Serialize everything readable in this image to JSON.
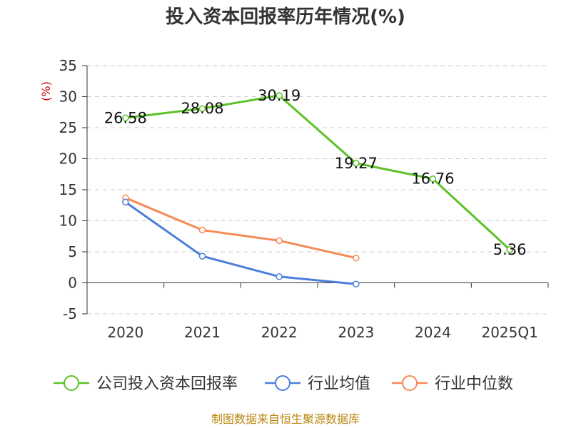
{
  "chart_data": {
    "type": "line",
    "title": "投入资本回报率历年情况(%)",
    "ylabel": "(%)",
    "xlabel": "",
    "categories": [
      "2020",
      "2021",
      "2022",
      "2023",
      "2024",
      "2025Q1"
    ],
    "ylim": [
      -5,
      35
    ],
    "yticks": [
      35,
      30,
      25,
      20,
      15,
      10,
      5,
      0,
      -5
    ],
    "grid": true,
    "legend_position": "bottom",
    "series": [
      {
        "name": "公司投入资本回报率",
        "color": "#5cc227",
        "values": [
          26.58,
          28.08,
          30.19,
          19.27,
          16.76,
          5.36
        ],
        "labels": [
          "26.58",
          "28.08",
          "30.19",
          "19.27",
          "16.76",
          "5.36"
        ]
      },
      {
        "name": "行业均值",
        "color": "#4c7fdb",
        "values": [
          13.0,
          4.3,
          1.0,
          -0.2,
          null,
          null
        ]
      },
      {
        "name": "行业中位数",
        "color": "#f58a55",
        "values": [
          13.7,
          8.5,
          6.8,
          4.0,
          null,
          null
        ]
      }
    ]
  },
  "source": "制图数据来自恒生聚源数据库"
}
